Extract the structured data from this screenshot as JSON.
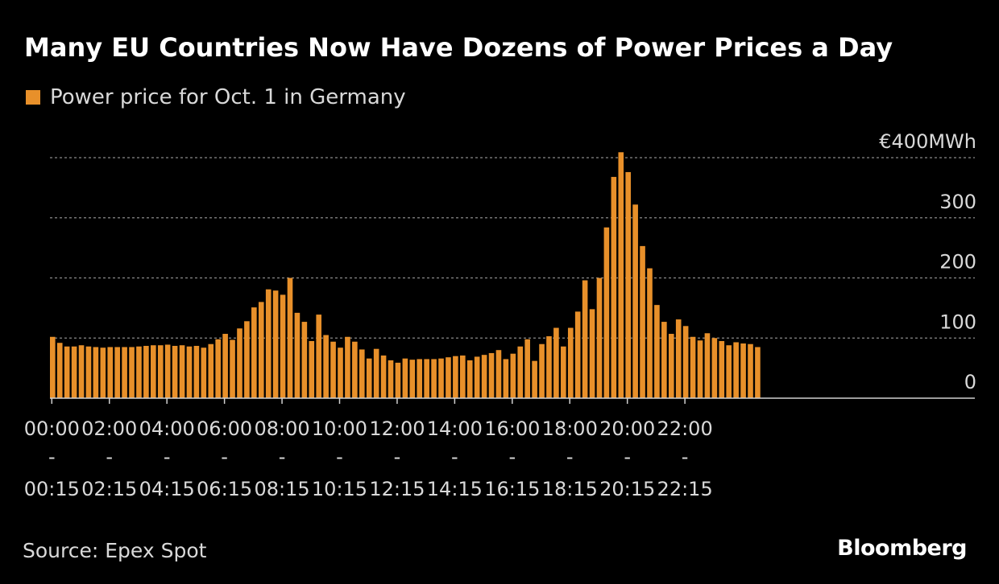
{
  "title": "Many EU Countries Now Have Dozens of Power Prices a Day",
  "legend": {
    "label": "Power price for Oct. 1 in Germany",
    "color": "#e8902a"
  },
  "source": "Source: Epex Spot",
  "brand": "Bloomberg",
  "chart_data": {
    "type": "bar",
    "title": "Many EU Countries Now Have Dozens of Power Prices a Day",
    "series_name": "Power price for Oct. 1 in Germany",
    "unit": "€/MWh",
    "ylim": [
      0,
      400
    ],
    "y_ticks": [
      {
        "value": 0,
        "label": "0"
      },
      {
        "value": 100,
        "label": "100"
      },
      {
        "value": 200,
        "label": "200"
      },
      {
        "value": 300,
        "label": "300"
      },
      {
        "value": 400,
        "label": "€400MWh"
      }
    ],
    "x_ticks": [
      {
        "index": 0,
        "start": "00:00",
        "sep": "-",
        "end": "00:15"
      },
      {
        "index": 8,
        "start": "02:00",
        "sep": "-",
        "end": "02:15"
      },
      {
        "index": 16,
        "start": "04:00",
        "sep": "-",
        "end": "04:15"
      },
      {
        "index": 24,
        "start": "06:00",
        "sep": "-",
        "end": "06:15"
      },
      {
        "index": 32,
        "start": "08:00",
        "sep": "-",
        "end": "08:15"
      },
      {
        "index": 40,
        "start": "10:00",
        "sep": "-",
        "end": "10:15"
      },
      {
        "index": 48,
        "start": "12:00",
        "sep": "-",
        "end": "12:15"
      },
      {
        "index": 56,
        "start": "14:00",
        "sep": "-",
        "end": "14:15"
      },
      {
        "index": 64,
        "start": "16:00",
        "sep": "-",
        "end": "16:15"
      },
      {
        "index": 72,
        "start": "18:00",
        "sep": "-",
        "end": "18:15"
      },
      {
        "index": 80,
        "start": "20:00",
        "sep": "-",
        "end": "20:15"
      },
      {
        "index": 88,
        "start": "22:00",
        "sep": "-",
        "end": "22:15"
      }
    ],
    "values": [
      102,
      92,
      86,
      86,
      88,
      86,
      85,
      84,
      85,
      85,
      85,
      85,
      86,
      87,
      88,
      88,
      89,
      87,
      88,
      86,
      87,
      84,
      90,
      98,
      107,
      97,
      116,
      128,
      151,
      160,
      181,
      179,
      172,
      200,
      142,
      127,
      95,
      139,
      105,
      94,
      84,
      102,
      94,
      81,
      66,
      82,
      71,
      63,
      59,
      66,
      64,
      65,
      65,
      65,
      66,
      68,
      70,
      71,
      63,
      69,
      72,
      75,
      80,
      65,
      74,
      86,
      98,
      62,
      90,
      103,
      117,
      86,
      117,
      144,
      196,
      148,
      200,
      284,
      368,
      409,
      376,
      322,
      253,
      216,
      155,
      127,
      107,
      131,
      120,
      102,
      96,
      108,
      100,
      95,
      88,
      93,
      91,
      90,
      85
    ]
  }
}
